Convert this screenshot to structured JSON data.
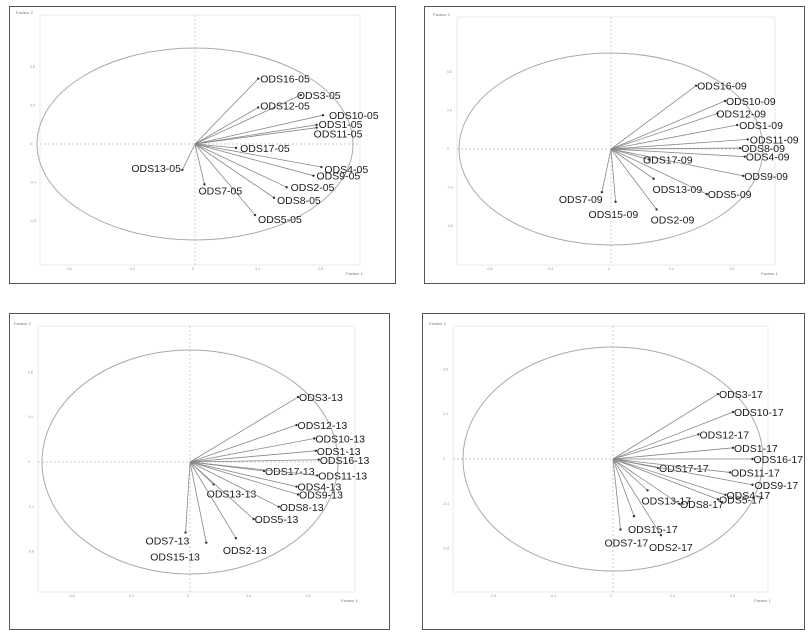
{
  "colors": {
    "circle": "#aaaaaa",
    "vector": "#888888",
    "axis": "#bbbbbb",
    "label": "#1a1a1a"
  },
  "axis_titles": {
    "x": "Facteur 1",
    "y": "Facteur 2"
  },
  "chart_data": [
    {
      "type": "scatter",
      "title": "",
      "xlabel": "Facteur 1",
      "ylabel": "Facteur 2",
      "xlim": [
        -1.1,
        1.1
      ],
      "ylim": [
        -1.1,
        1.1
      ],
      "xticks": [
        "-0.8",
        "-0.4",
        "0",
        "0.4",
        "0.8"
      ],
      "yticks": [
        "0.8",
        "0.4",
        "0",
        "-0.4",
        "-0.8"
      ],
      "points": [
        {
          "name": "ODS16-05",
          "x": 0.4,
          "y": 0.68
        },
        {
          "name": "ODS3-05",
          "x": 0.67,
          "y": 0.51
        },
        {
          "name": "ODS12-05",
          "x": 0.4,
          "y": 0.38
        },
        {
          "name": "ODS10-05",
          "x": 0.81,
          "y": 0.3
        },
        {
          "name": "ODS1-05",
          "x": 0.77,
          "y": 0.2
        },
        {
          "name": "ODS11-05",
          "x": 0.77,
          "y": 0.17
        },
        {
          "name": "ODS17-05",
          "x": 0.26,
          "y": -0.04
        },
        {
          "name": "ODS4-05",
          "x": 0.8,
          "y": -0.24
        },
        {
          "name": "ODS9-05",
          "x": 0.75,
          "y": -0.33
        },
        {
          "name": "ODS2-05",
          "x": 0.58,
          "y": -0.45
        },
        {
          "name": "ODS8-05",
          "x": 0.5,
          "y": -0.56
        },
        {
          "name": "ODS5-05",
          "x": 0.38,
          "y": -0.74
        },
        {
          "name": "ODS13-05",
          "x": -0.08,
          "y": -0.27
        },
        {
          "name": "ODS7-05",
          "x": 0.06,
          "y": -0.42
        }
      ]
    },
    {
      "type": "scatter",
      "title": "",
      "xlabel": "Facteur 1",
      "ylabel": "Facteur 2",
      "xlim": [
        -1.1,
        1.1
      ],
      "ylim": [
        -1.1,
        1.1
      ],
      "xticks": [
        "-0.8",
        "-0.4",
        "0",
        "0.4",
        "0.8"
      ],
      "yticks": [
        "0.8",
        "0.4",
        "0",
        "-0.4",
        "-0.8"
      ],
      "points": [
        {
          "name": "ODS16-09",
          "x": 0.56,
          "y": 0.66
        },
        {
          "name": "ODS10-09",
          "x": 0.75,
          "y": 0.5
        },
        {
          "name": "ODS12-09",
          "x": 0.7,
          "y": 0.37
        },
        {
          "name": "ODS1-09",
          "x": 0.83,
          "y": 0.25
        },
        {
          "name": "ODS11-09",
          "x": 0.9,
          "y": 0.1
        },
        {
          "name": "ODS8-09",
          "x": 0.85,
          "y": 0.01
        },
        {
          "name": "ODS4-09",
          "x": 0.88,
          "y": -0.08
        },
        {
          "name": "ODS9-09",
          "x": 0.87,
          "y": -0.28
        },
        {
          "name": "ODS17-09",
          "x": 0.25,
          "y": -0.11
        },
        {
          "name": "ODS13-09",
          "x": 0.28,
          "y": -0.31
        },
        {
          "name": "ODS5-09",
          "x": 0.63,
          "y": -0.47
        },
        {
          "name": "ODS7-09",
          "x": -0.06,
          "y": -0.45
        },
        {
          "name": "ODS15-09",
          "x": 0.03,
          "y": -0.55
        },
        {
          "name": "ODS2-09",
          "x": 0.3,
          "y": -0.63
        }
      ]
    },
    {
      "type": "scatter",
      "title": "",
      "xlabel": "Facteur 1",
      "ylabel": "Facteur 2",
      "xlim": [
        -1.1,
        1.1
      ],
      "ylim": [
        -1.1,
        1.1
      ],
      "xticks": [
        "-0.8",
        "-0.4",
        "0",
        "0.4",
        "0.8"
      ],
      "yticks": [
        "0.8",
        "0.4",
        "0",
        "-0.4",
        "-0.8"
      ],
      "points": [
        {
          "name": "ODS3-13",
          "x": 0.73,
          "y": 0.58
        },
        {
          "name": "ODS12-13",
          "x": 0.72,
          "y": 0.33
        },
        {
          "name": "ODS10-13",
          "x": 0.84,
          "y": 0.21
        },
        {
          "name": "ODS1-13",
          "x": 0.85,
          "y": 0.1
        },
        {
          "name": "ODS16-13",
          "x": 0.87,
          "y": 0.02
        },
        {
          "name": "ODS17-13",
          "x": 0.5,
          "y": -0.08
        },
        {
          "name": "ODS11-13",
          "x": 0.86,
          "y": -0.12
        },
        {
          "name": "ODS13-13",
          "x": 0.16,
          "y": -0.2
        },
        {
          "name": "ODS4-13",
          "x": 0.72,
          "y": -0.22
        },
        {
          "name": "ODS9-13",
          "x": 0.73,
          "y": -0.29
        },
        {
          "name": "ODS8-13",
          "x": 0.6,
          "y": -0.4
        },
        {
          "name": "ODS5-13",
          "x": 0.43,
          "y": -0.51
        },
        {
          "name": "ODS7-13",
          "x": -0.03,
          "y": -0.63
        },
        {
          "name": "ODS15-13",
          "x": 0.11,
          "y": -0.72
        },
        {
          "name": "ODS2-13",
          "x": 0.31,
          "y": -0.68
        }
      ]
    },
    {
      "type": "scatter",
      "title": "",
      "xlabel": "Facteur 1",
      "ylabel": "Facteur 2",
      "xlim": [
        -1.1,
        1.1
      ],
      "ylim": [
        -1.1,
        1.1
      ],
      "xticks": [
        "-0.8",
        "-0.4",
        "0",
        "0.4",
        "0.8"
      ],
      "yticks": [
        "0.8",
        "0.4",
        "0",
        "-0.4",
        "-0.8"
      ],
      "points": [
        {
          "name": "ODS3-17",
          "x": 0.7,
          "y": 0.58
        },
        {
          "name": "ODS10-17",
          "x": 0.8,
          "y": 0.42
        },
        {
          "name": "ODS12-17",
          "x": 0.57,
          "y": 0.22
        },
        {
          "name": "ODS1-17",
          "x": 0.8,
          "y": 0.1
        },
        {
          "name": "ODS16-17",
          "x": 0.93,
          "y": 0.0
        },
        {
          "name": "ODS17-17",
          "x": 0.3,
          "y": -0.08
        },
        {
          "name": "ODS11-17",
          "x": 0.78,
          "y": -0.12
        },
        {
          "name": "ODS9-17",
          "x": 0.93,
          "y": -0.23
        },
        {
          "name": "ODS13-17",
          "x": 0.23,
          "y": -0.28
        },
        {
          "name": "ODS4-17",
          "x": 0.75,
          "y": -0.32
        },
        {
          "name": "ODS8-17",
          "x": 0.44,
          "y": -0.4
        },
        {
          "name": "ODS5-17",
          "x": 0.7,
          "y": -0.36
        },
        {
          "name": "ODS15-17",
          "x": 0.14,
          "y": -0.51
        },
        {
          "name": "ODS7-17",
          "x": 0.05,
          "y": -0.63
        },
        {
          "name": "ODS2-17",
          "x": 0.32,
          "y": -0.68
        }
      ]
    }
  ]
}
